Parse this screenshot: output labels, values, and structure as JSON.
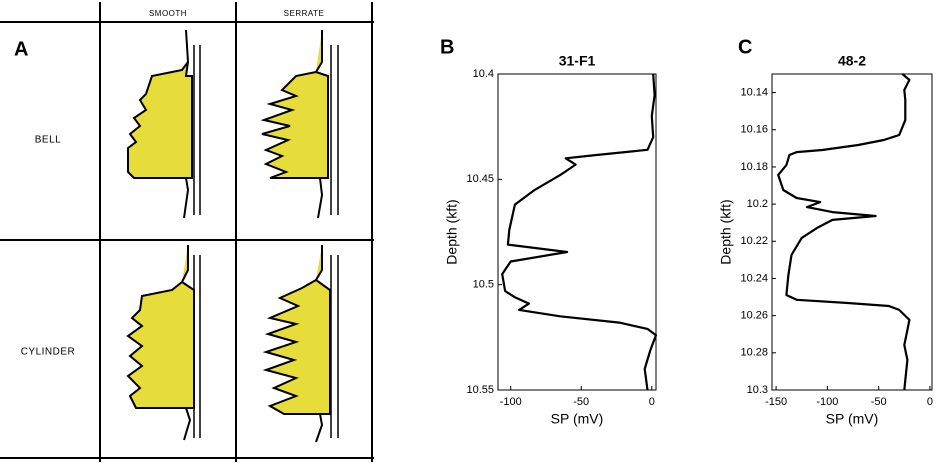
{
  "diagram": {
    "label": "A",
    "columns": [
      "SMOOTH",
      "SERRATE"
    ],
    "rows": [
      "BELL",
      "CYLINDER"
    ]
  },
  "chart_data": [
    {
      "type": "line",
      "panel_label": "B",
      "title": "31-F1",
      "xlabel": "SP (mV)",
      "ylabel": "Depth (kft)",
      "orientation": "vertical",
      "y_reversed": true,
      "color": "#000000",
      "xlim": [
        -109,
        3
      ],
      "xticks": [
        -100,
        -50,
        0
      ],
      "ylim": [
        10.4,
        10.55
      ],
      "yticks": [
        10.4,
        10.45,
        10.5,
        10.55
      ],
      "depth": [
        10.4,
        10.41,
        10.42,
        10.43,
        10.436,
        10.4385,
        10.44,
        10.443,
        10.448,
        10.455,
        10.462,
        10.474,
        10.481,
        10.4845,
        10.489,
        10.495,
        10.503,
        10.506,
        10.509,
        10.512,
        10.515,
        10.518,
        10.521,
        10.524,
        10.531,
        10.54,
        10.55
      ],
      "values": [
        1,
        2,
        0,
        1,
        -3,
        -40,
        -61,
        -54,
        -65,
        -83,
        -97,
        -101,
        -102,
        -60,
        -100,
        -106,
        -104,
        -97,
        -87,
        -94,
        -65,
        -23,
        -3,
        3,
        -1,
        -5,
        -3
      ]
    },
    {
      "type": "line",
      "panel_label": "C",
      "title": "48-2",
      "xlabel": "SP (mV)",
      "ylabel": "Depth (kft)",
      "orientation": "vertical",
      "y_reversed": true,
      "color": "#000000",
      "xlim": [
        -154,
        2
      ],
      "xticks": [
        -150,
        -100,
        -50,
        0
      ],
      "ylim": [
        10.13,
        10.3
      ],
      "yticks": [
        10.14,
        10.16,
        10.18,
        10.2,
        10.22,
        10.24,
        10.26,
        10.28,
        10.3
      ],
      "depth": [
        10.13,
        10.1332,
        10.1386,
        10.144,
        10.1548,
        10.1628,
        10.1655,
        10.1682,
        10.1709,
        10.172,
        10.1736,
        10.179,
        10.1843,
        10.1924,
        10.1967,
        10.1989,
        10.2016,
        10.2043,
        10.2064,
        10.2085,
        10.2128,
        10.2182,
        10.2273,
        10.2381,
        10.2489,
        10.2515,
        10.2532,
        10.2548,
        10.2569,
        10.2623,
        10.2677,
        10.2758,
        10.2838,
        10.3
      ],
      "values": [
        -27,
        -20,
        -25,
        -24,
        -24,
        -30,
        -45,
        -70,
        -105,
        -130,
        -137,
        -140,
        -148,
        -143,
        -130,
        -107,
        -120,
        -95,
        -53,
        -95,
        -110,
        -125,
        -135,
        -138,
        -140,
        -130,
        -80,
        -40,
        -30,
        -20,
        -22,
        -25,
        -22,
        -25
      ]
    }
  ]
}
